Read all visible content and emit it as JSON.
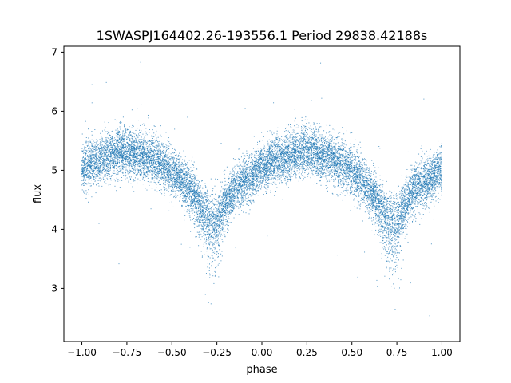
{
  "chart_data": {
    "type": "scatter",
    "title": "1SWASPJ164402.26-193556.1 Period 29838.42188s",
    "xlabel": "phase",
    "ylabel": "flux",
    "xlim": [
      -1.1,
      1.1
    ],
    "ylim": [
      2.1,
      7.1
    ],
    "xticks": [
      -1.0,
      -0.75,
      -0.5,
      -0.25,
      0.0,
      0.25,
      0.5,
      0.75,
      1.0
    ],
    "xtick_labels": [
      "−1.00",
      "−0.75",
      "−0.50",
      "−0.25",
      "0.00",
      "0.25",
      "0.50",
      "0.75",
      "1.00"
    ],
    "yticks": [
      3,
      4,
      5,
      6,
      7
    ],
    "ytick_labels": [
      "3",
      "4",
      "5",
      "6",
      "7"
    ],
    "grid": false,
    "marker_color": "#1f77b4",
    "series": [
      {
        "name": "",
        "x_range": [
          -1.0,
          1.0
        ],
        "n_points": 14000,
        "trend": [
          {
            "x": -1.0,
            "y": 5.05
          },
          {
            "x": -0.9,
            "y": 5.2
          },
          {
            "x": -0.8,
            "y": 5.3
          },
          {
            "x": -0.75,
            "y": 5.32
          },
          {
            "x": -0.65,
            "y": 5.25
          },
          {
            "x": -0.55,
            "y": 5.1
          },
          {
            "x": -0.45,
            "y": 4.85
          },
          {
            "x": -0.38,
            "y": 4.6
          },
          {
            "x": -0.3,
            "y": 4.25
          },
          {
            "x": -0.25,
            "y": 4.2
          },
          {
            "x": -0.2,
            "y": 4.45
          },
          {
            "x": -0.15,
            "y": 4.7
          },
          {
            "x": -0.05,
            "y": 4.9
          },
          {
            "x": 0.0,
            "y": 5.05
          },
          {
            "x": 0.1,
            "y": 5.2
          },
          {
            "x": 0.2,
            "y": 5.3
          },
          {
            "x": 0.25,
            "y": 5.32
          },
          {
            "x": 0.35,
            "y": 5.25
          },
          {
            "x": 0.45,
            "y": 5.1
          },
          {
            "x": 0.55,
            "y": 4.85
          },
          {
            "x": 0.62,
            "y": 4.6
          },
          {
            "x": 0.7,
            "y": 4.25
          },
          {
            "x": 0.75,
            "y": 4.2
          },
          {
            "x": 0.8,
            "y": 4.45
          },
          {
            "x": 0.85,
            "y": 4.7
          },
          {
            "x": 0.95,
            "y": 4.9
          },
          {
            "x": 1.0,
            "y": 5.05
          }
        ]
      }
    ]
  }
}
